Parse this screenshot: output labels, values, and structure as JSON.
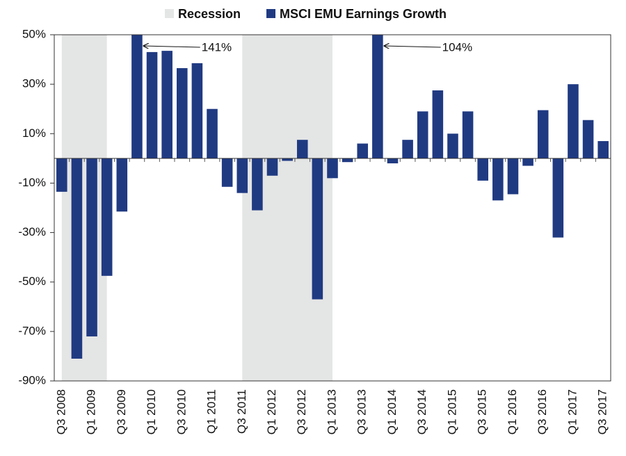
{
  "chart_data": {
    "type": "bar",
    "categories": [
      "Q3 2008",
      null,
      "Q1 2009",
      null,
      "Q3 2009",
      null,
      "Q1 2010",
      null,
      "Q3 2010",
      null,
      "Q1 2011",
      null,
      "Q3 2011",
      null,
      "Q1 2012",
      null,
      "Q3 2012",
      null,
      "Q1 2013",
      null,
      "Q3 2013",
      null,
      "Q1 2014",
      null,
      "Q3 2014",
      null,
      "Q1 2015",
      null,
      "Q3 2015",
      null,
      "Q1 2016",
      null,
      "Q3 2016",
      null,
      "Q1 2017",
      null,
      "Q3 2017"
    ],
    "series": [
      {
        "name": "MSCI EMU Earnings Growth",
        "color": "#203a82",
        "values": [
          -13.5,
          -81,
          -72,
          -47.5,
          -21.5,
          141,
          43,
          43.5,
          36.5,
          38.5,
          20,
          -11.5,
          -14,
          -21,
          -7,
          -1,
          7.5,
          -57,
          -8,
          -1.5,
          6,
          104,
          -2,
          7.5,
          19,
          27.5,
          10,
          19,
          -9,
          -17,
          -14.5,
          -3,
          19.5,
          -32,
          30,
          15.5,
          7
        ],
        "value_labels": [
          null,
          null,
          null,
          null,
          null,
          "141%",
          null,
          null,
          null,
          null,
          null,
          null,
          null,
          null,
          null,
          null,
          null,
          null,
          null,
          null,
          null,
          "104%",
          null,
          null,
          null,
          null,
          null,
          null,
          null,
          null,
          null,
          null,
          null,
          null,
          null,
          null,
          null
        ]
      }
    ],
    "recession": {
      "name": "Recession",
      "color": "#e4e5e5",
      "spans": [
        [
          0,
          3
        ],
        [
          12,
          18
        ]
      ]
    },
    "ylim": [
      -90,
      50
    ],
    "yticks": [
      {
        "value": 50,
        "label": "50%"
      },
      {
        "value": 30,
        "label": "30%"
      },
      {
        "value": 10,
        "label": "10%"
      },
      {
        "value": -10,
        "label": "-10%"
      },
      {
        "value": -30,
        "label": "-30%"
      },
      {
        "value": -50,
        "label": "-50%"
      },
      {
        "value": -70,
        "label": "-70%"
      },
      {
        "value": -90,
        "label": "-90%"
      }
    ],
    "legend": "top"
  }
}
